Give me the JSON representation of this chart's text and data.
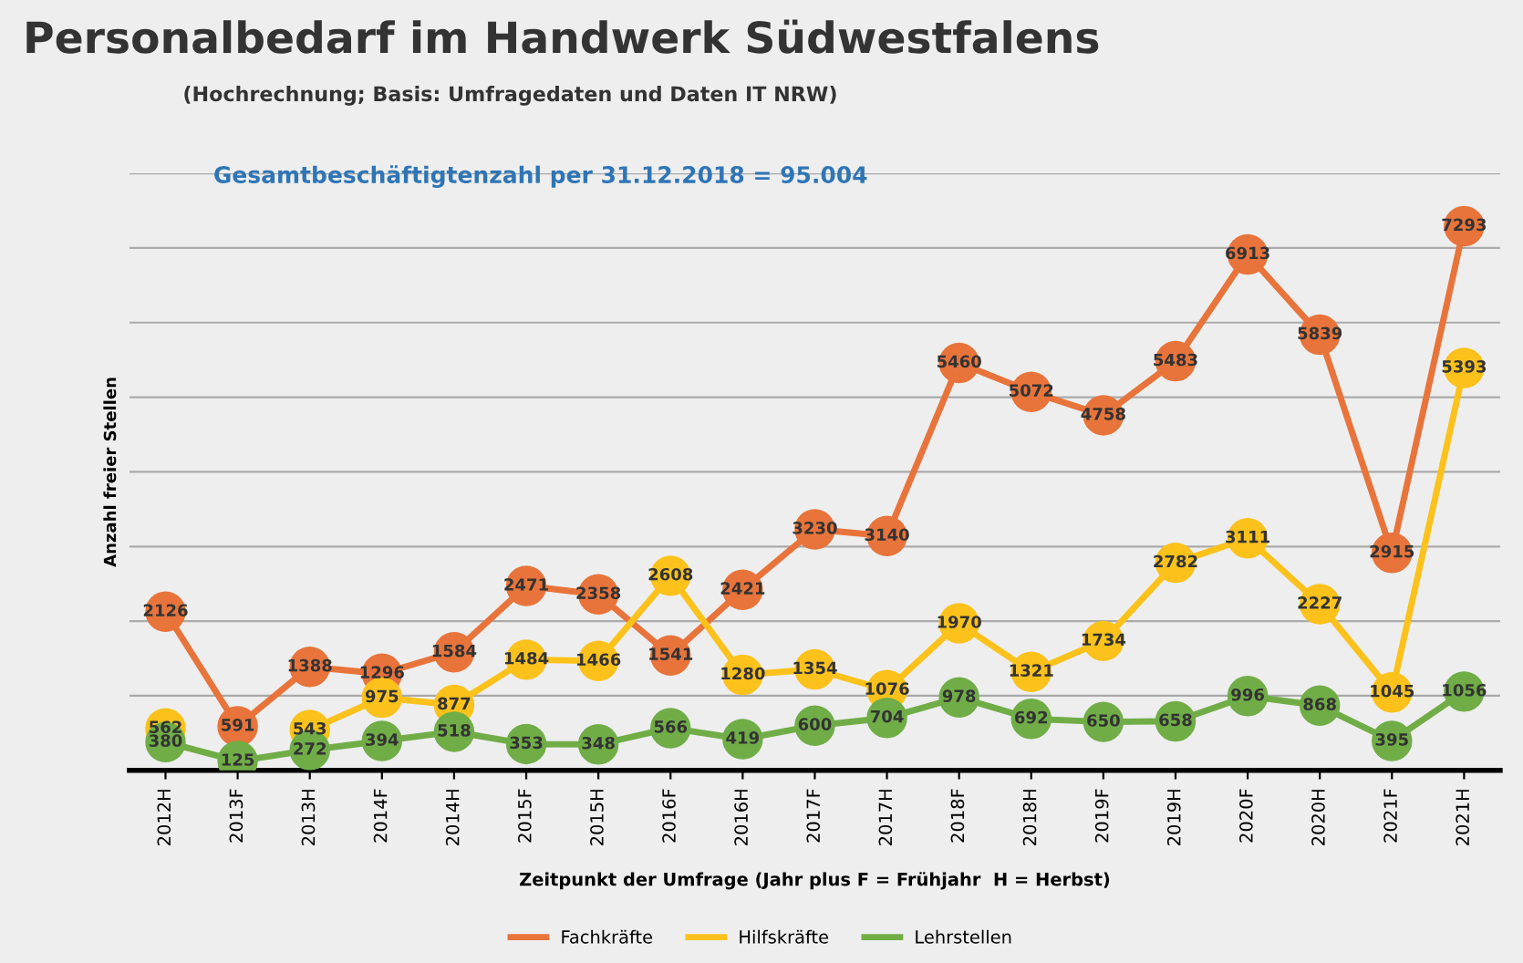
{
  "chart_data": {
    "type": "line",
    "title": "Personalbedarf im Handwerk Südwestfalens",
    "subtitle": "(Hochrechnung; Basis: Umfragedaten und Daten IT NRW)",
    "annotations": [
      "Gesamtbeschäftigtenzahl per 31.12.2018 = 95.004"
    ],
    "xlabel": "Zeitpunkt der Umfrage (Jahr plus F = Frühjahr  H = Herbst)",
    "ylabel": "Anzahl freier Stellen",
    "categories": [
      "2012H",
      "2013F",
      "2013H",
      "2014F",
      "2014H",
      "2015F",
      "2015H",
      "2016F",
      "2016H",
      "2017F",
      "2017H",
      "2018F",
      "2018H",
      "2019F",
      "2019H",
      "2020F",
      "2020H",
      "2021F",
      "2021H"
    ],
    "series": [
      {
        "name": "Fachkräfte",
        "color": "#e8743b",
        "values": [
          2126,
          591,
          1388,
          1296,
          1584,
          2471,
          2358,
          1541,
          2421,
          3230,
          3140,
          5460,
          5072,
          4758,
          5483,
          6913,
          5839,
          2915,
          7293
        ]
      },
      {
        "name": "Hilfskräfte",
        "color": "#fcc21b",
        "values": [
          562,
          null,
          543,
          975,
          877,
          1484,
          1466,
          2608,
          1280,
          1354,
          1076,
          1970,
          1321,
          1734,
          2782,
          3111,
          2227,
          1045,
          5393
        ]
      },
      {
        "name": "Lehrstellen",
        "color": "#70ad47",
        "values": [
          380,
          125,
          272,
          394,
          518,
          353,
          348,
          566,
          419,
          600,
          704,
          978,
          692,
          650,
          658,
          996,
          868,
          395,
          1056
        ]
      }
    ],
    "ylim": [
      0,
      8000
    ],
    "yticks": [
      {
        "value": 0,
        "label": null
      },
      {
        "value": 1000,
        "label": null
      },
      {
        "value": 2000,
        "label": null
      },
      {
        "value": 3000,
        "label": null
      },
      {
        "value": 4000,
        "label": null
      },
      {
        "value": 5000,
        "label": null
      },
      {
        "value": 6000,
        "label": null
      },
      {
        "value": 7000,
        "label": null
      },
      {
        "value": 8000,
        "label": null
      }
    ],
    "tick_labels": "x",
    "grid": "y",
    "legend": "bottom",
    "marker": "circle",
    "line_style": "solid",
    "data_labels": true
  }
}
